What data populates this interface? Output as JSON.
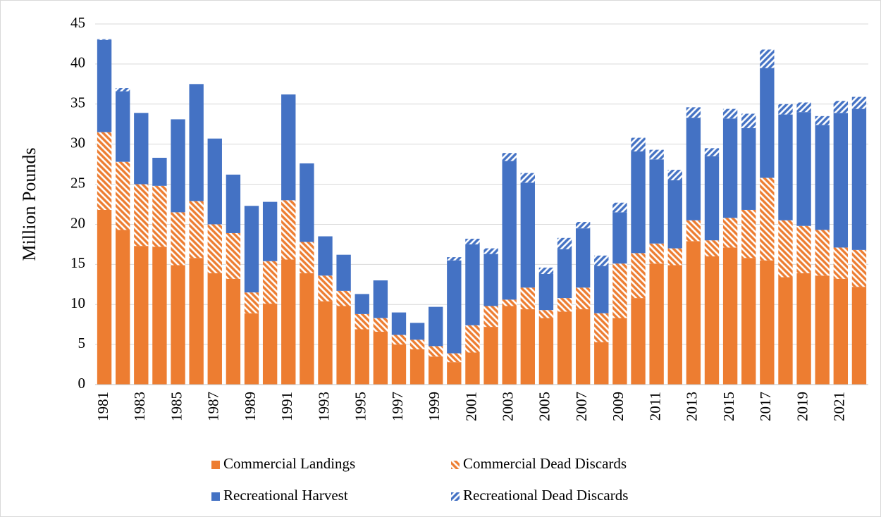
{
  "chart_data": {
    "type": "stacked-bar",
    "y_label": "Million Pounds",
    "categories": [
      "1981",
      null,
      "1983",
      null,
      "1985",
      null,
      "1987",
      null,
      "1989",
      null,
      "1991",
      null,
      "1993",
      null,
      "1995",
      null,
      "1997",
      null,
      "1999",
      null,
      "2001",
      null,
      "2003",
      null,
      "2005",
      null,
      "2007",
      null,
      "2009",
      null,
      "2011",
      null,
      "2013",
      null,
      "2015",
      null,
      "2017",
      null,
      "2019",
      null,
      "2021",
      null
    ],
    "series": [
      {
        "name": "Commercial Landings",
        "color": "#ed7d31",
        "hatch": false,
        "values": [
          21.8,
          19.3,
          17.3,
          17.2,
          14.9,
          15.8,
          13.9,
          13.2,
          8.9,
          10.1,
          15.6,
          13.9,
          10.4,
          9.8,
          6.9,
          6.6,
          5.0,
          4.4,
          3.5,
          2.8,
          4.0,
          7.2,
          9.8,
          9.4,
          8.3,
          9.1,
          9.4,
          5.3,
          8.3,
          10.8,
          15.1,
          14.9,
          17.9,
          16.0,
          17.1,
          15.8,
          15.5,
          13.4,
          13.9,
          13.6,
          13.2,
          12.2
        ]
      },
      {
        "name": "Commercial Dead Discards",
        "color": "#ed7d31",
        "hatch": true,
        "values": [
          9.7,
          8.5,
          7.7,
          7.6,
          6.6,
          7.1,
          6.1,
          5.7,
          2.6,
          5.3,
          7.4,
          3.9,
          3.2,
          1.9,
          1.9,
          1.7,
          1.2,
          1.2,
          1.3,
          1.1,
          3.4,
          2.6,
          0.8,
          2.7,
          1.0,
          1.7,
          2.7,
          3.6,
          6.8,
          5.6,
          2.5,
          2.1,
          2.6,
          2.0,
          3.7,
          6.0,
          10.3,
          7.1,
          5.9,
          5.7,
          3.9,
          4.6
        ]
      },
      {
        "name": "Recreational Harvest",
        "color": "#4472c4",
        "hatch": false,
        "values": [
          11.5,
          8.8,
          8.9,
          3.5,
          11.6,
          14.6,
          10.7,
          7.3,
          10.8,
          7.4,
          13.2,
          9.8,
          4.9,
          4.5,
          2.5,
          4.7,
          2.8,
          2.1,
          4.9,
          11.6,
          10.1,
          6.5,
          17.3,
          13.1,
          4.5,
          6.1,
          7.4,
          5.9,
          6.4,
          12.7,
          10.5,
          8.5,
          12.8,
          10.5,
          12.4,
          10.2,
          13.7,
          13.2,
          14.2,
          13.1,
          16.8,
          17.6
        ]
      },
      {
        "name": "Recreational Dead Discards",
        "color": "#4472c4",
        "hatch": true,
        "values": [
          0.1,
          0.4,
          0,
          0,
          0,
          0,
          0,
          0,
          0,
          0,
          0,
          0,
          0,
          0,
          0,
          0,
          0,
          0,
          0,
          0.4,
          0.7,
          0.7,
          1.0,
          1.2,
          0.8,
          1.4,
          0.8,
          1.3,
          1.2,
          1.7,
          1.2,
          1.3,
          1.3,
          1.0,
          1.2,
          1.8,
          2.3,
          1.3,
          1.2,
          1.1,
          1.5,
          1.5
        ]
      }
    ],
    "ylim": [
      0,
      45
    ],
    "yticks": [
      0,
      5,
      10,
      15,
      20,
      25,
      30,
      35,
      40,
      45
    ],
    "grid": true
  }
}
